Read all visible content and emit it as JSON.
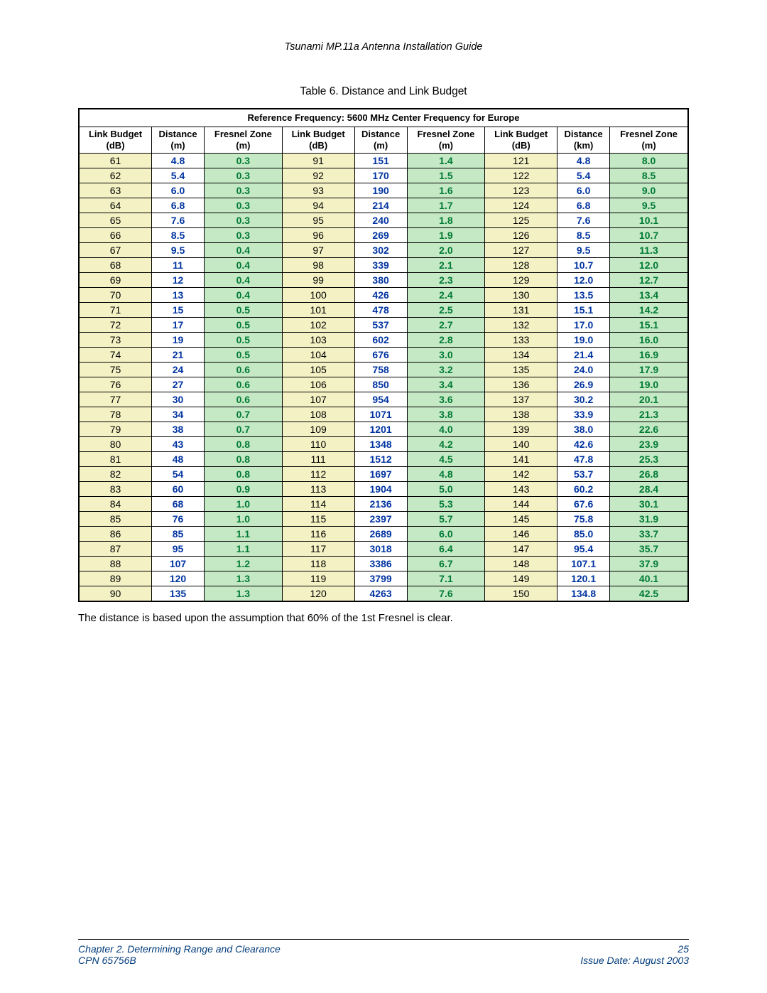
{
  "header": {
    "title": "Tsunami MP.11a Antenna Installation Guide"
  },
  "caption": "Table 6.  Distance and Link Budget",
  "table": {
    "type": "table",
    "ref_frequency": "Reference Frequency:  5600 MHz Center Frequency for Europe",
    "columns": [
      "Link Budget (dB)",
      "Distance (m)",
      "Fresnel Zone (m)",
      "Link Budget (dB)",
      "Distance (m)",
      "Fresnel Zone (m)",
      "Link Budget (dB)",
      "Distance (km)",
      "Fresnel Zone (m)"
    ],
    "header_fontsize": 13,
    "cell_fontsize": 14,
    "border_color": "#000000",
    "lb_bg": "#f4f2c5",
    "fz_bg": "#c5e8c5",
    "dist_color": "#0033a0",
    "fz_color": "#007a33",
    "rows": [
      [
        "61",
        "4.8",
        "0.3",
        "91",
        "151",
        "1.4",
        "121",
        "4.8",
        "8.0"
      ],
      [
        "62",
        "5.4",
        "0.3",
        "92",
        "170",
        "1.5",
        "122",
        "5.4",
        "8.5"
      ],
      [
        "63",
        "6.0",
        "0.3",
        "93",
        "190",
        "1.6",
        "123",
        "6.0",
        "9.0"
      ],
      [
        "64",
        "6.8",
        "0.3",
        "94",
        "214",
        "1.7",
        "124",
        "6.8",
        "9.5"
      ],
      [
        "65",
        "7.6",
        "0.3",
        "95",
        "240",
        "1.8",
        "125",
        "7.6",
        "10.1"
      ],
      [
        "66",
        "8.5",
        "0.3",
        "96",
        "269",
        "1.9",
        "126",
        "8.5",
        "10.7"
      ],
      [
        "67",
        "9.5",
        "0.4",
        "97",
        "302",
        "2.0",
        "127",
        "9.5",
        "11.3"
      ],
      [
        "68",
        "11",
        "0.4",
        "98",
        "339",
        "2.1",
        "128",
        "10.7",
        "12.0"
      ],
      [
        "69",
        "12",
        "0.4",
        "99",
        "380",
        "2.3",
        "129",
        "12.0",
        "12.7"
      ],
      [
        "70",
        "13",
        "0.4",
        "100",
        "426",
        "2.4",
        "130",
        "13.5",
        "13.4"
      ],
      [
        "71",
        "15",
        "0.5",
        "101",
        "478",
        "2.5",
        "131",
        "15.1",
        "14.2"
      ],
      [
        "72",
        "17",
        "0.5",
        "102",
        "537",
        "2.7",
        "132",
        "17.0",
        "15.1"
      ],
      [
        "73",
        "19",
        "0.5",
        "103",
        "602",
        "2.8",
        "133",
        "19.0",
        "16.0"
      ],
      [
        "74",
        "21",
        "0.5",
        "104",
        "676",
        "3.0",
        "134",
        "21.4",
        "16.9"
      ],
      [
        "75",
        "24",
        "0.6",
        "105",
        "758",
        "3.2",
        "135",
        "24.0",
        "17.9"
      ],
      [
        "76",
        "27",
        "0.6",
        "106",
        "850",
        "3.4",
        "136",
        "26.9",
        "19.0"
      ],
      [
        "77",
        "30",
        "0.6",
        "107",
        "954",
        "3.6",
        "137",
        "30.2",
        "20.1"
      ],
      [
        "78",
        "34",
        "0.7",
        "108",
        "1071",
        "3.8",
        "138",
        "33.9",
        "21.3"
      ],
      [
        "79",
        "38",
        "0.7",
        "109",
        "1201",
        "4.0",
        "139",
        "38.0",
        "22.6"
      ],
      [
        "80",
        "43",
        "0.8",
        "110",
        "1348",
        "4.2",
        "140",
        "42.6",
        "23.9"
      ],
      [
        "81",
        "48",
        "0.8",
        "111",
        "1512",
        "4.5",
        "141",
        "47.8",
        "25.3"
      ],
      [
        "82",
        "54",
        "0.8",
        "112",
        "1697",
        "4.8",
        "142",
        "53.7",
        "26.8"
      ],
      [
        "83",
        "60",
        "0.9",
        "113",
        "1904",
        "5.0",
        "143",
        "60.2",
        "28.4"
      ],
      [
        "84",
        "68",
        "1.0",
        "114",
        "2136",
        "5.3",
        "144",
        "67.6",
        "30.1"
      ],
      [
        "85",
        "76",
        "1.0",
        "115",
        "2397",
        "5.7",
        "145",
        "75.8",
        "31.9"
      ],
      [
        "86",
        "85",
        "1.1",
        "116",
        "2689",
        "6.0",
        "146",
        "85.0",
        "33.7"
      ],
      [
        "87",
        "95",
        "1.1",
        "117",
        "3018",
        "6.4",
        "147",
        "95.4",
        "35.7"
      ],
      [
        "88",
        "107",
        "1.2",
        "118",
        "3386",
        "6.7",
        "148",
        "107.1",
        "37.9"
      ],
      [
        "89",
        "120",
        "1.3",
        "119",
        "3799",
        "7.1",
        "149",
        "120.1",
        "40.1"
      ],
      [
        "90",
        "135",
        "1.3",
        "120",
        "4263",
        "7.6",
        "150",
        "134.8",
        "42.5"
      ]
    ]
  },
  "note": "The distance is based upon the assumption that 60% of the 1st Fresnel is clear.",
  "footer": {
    "chapter": "Chapter 2.  Determining Range and Clearance",
    "cpn": "CPN 65756B",
    "page": "25",
    "issue": "Issue Date:  August 2003",
    "color": "#003b7a"
  }
}
